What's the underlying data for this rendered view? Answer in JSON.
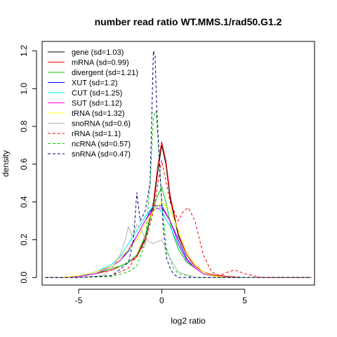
{
  "chart_data": {
    "type": "line",
    "title": "number read ratio WT.MMS.1/rad50.G1.2",
    "xlabel": "log2 ratio",
    "ylabel": "density",
    "xlim": [
      -7.2,
      9.2
    ],
    "ylim": [
      -0.04,
      1.25
    ],
    "x_ticks": [
      -5,
      0,
      5
    ],
    "x_tick_labels": [
      "-5",
      "0",
      "5"
    ],
    "y_ticks": [
      0.0,
      0.2,
      0.4,
      0.6,
      0.8,
      1.0,
      1.2
    ],
    "y_tick_labels": [
      "0.0",
      "0.2",
      "0.4",
      "0.6",
      "0.8",
      "1.0",
      "1.2"
    ],
    "grid": false,
    "legend_position": "top-left",
    "series": [
      {
        "name": "gene (sd=1.03)",
        "color": "#000000",
        "dash": "solid",
        "x": [
          -7,
          -6,
          -5,
          -4,
          -3.5,
          -3,
          -2.5,
          -2,
          -1.5,
          -1,
          -0.5,
          -0.25,
          0,
          0.25,
          0.5,
          1,
          1.5,
          2,
          2.5,
          3,
          4,
          5,
          6,
          7,
          9
        ],
        "y": [
          0,
          0,
          0.005,
          0.02,
          0.03,
          0.04,
          0.06,
          0.08,
          0.11,
          0.2,
          0.38,
          0.55,
          0.7,
          0.6,
          0.42,
          0.22,
          0.12,
          0.06,
          0.03,
          0.015,
          0.005,
          0,
          0,
          0,
          0
        ]
      },
      {
        "name": "mRNA (sd=0.99)",
        "color": "#ff0000",
        "dash": "solid",
        "x": [
          -7,
          -6,
          -5,
          -4,
          -3.5,
          -3,
          -2.5,
          -2,
          -1.5,
          -1,
          -0.5,
          -0.25,
          0,
          0.25,
          0.5,
          1,
          1.5,
          2,
          2.5,
          3,
          4,
          5,
          6,
          7,
          9
        ],
        "y": [
          0,
          0,
          0.005,
          0.02,
          0.03,
          0.04,
          0.06,
          0.08,
          0.11,
          0.21,
          0.4,
          0.58,
          0.72,
          0.62,
          0.44,
          0.23,
          0.12,
          0.06,
          0.03,
          0.015,
          0.005,
          0,
          0,
          0,
          0
        ]
      },
      {
        "name": "divergent (sd=1.21)",
        "color": "#00cd00",
        "dash": "solid",
        "x": [
          -7,
          -6,
          -5,
          -4,
          -3,
          -2.5,
          -2,
          -1.5,
          -1,
          -0.6,
          -0.3,
          0,
          0.3,
          0.6,
          1,
          1.5,
          2,
          2.5,
          3,
          4,
          5,
          6,
          7,
          9
        ],
        "y": [
          0,
          0,
          0.005,
          0.02,
          0.05,
          0.06,
          0.08,
          0.12,
          0.22,
          0.34,
          0.42,
          0.48,
          0.38,
          0.25,
          0.15,
          0.08,
          0.05,
          0.02,
          0.01,
          0,
          0,
          0,
          0,
          0
        ]
      },
      {
        "name": "XUT (sd=1.2)",
        "color": "#0000ff",
        "dash": "solid",
        "x": [
          -7,
          -6,
          -5,
          -4,
          -3,
          -2.5,
          -2,
          -1.5,
          -1,
          -0.5,
          0,
          0.5,
          1,
          1.5,
          2,
          2.5,
          3,
          4,
          5,
          6,
          7,
          9
        ],
        "y": [
          0,
          0,
          0.005,
          0.03,
          0.06,
          0.09,
          0.14,
          0.22,
          0.3,
          0.38,
          0.38,
          0.3,
          0.2,
          0.1,
          0.05,
          0.02,
          0.01,
          0,
          0,
          0,
          0,
          0
        ]
      },
      {
        "name": "CUT (sd=1.25)",
        "color": "#00e5ee",
        "dash": "solid",
        "x": [
          -7,
          -6,
          -5,
          -4,
          -3,
          -2.5,
          -2,
          -1.5,
          -1,
          -0.5,
          0,
          0.5,
          1,
          1.5,
          2,
          2.5,
          3,
          4,
          5,
          6,
          7,
          9
        ],
        "y": [
          0,
          0,
          0.005,
          0.03,
          0.07,
          0.11,
          0.18,
          0.25,
          0.32,
          0.38,
          0.35,
          0.27,
          0.17,
          0.09,
          0.05,
          0.02,
          0.01,
          0,
          0,
          0,
          0,
          0
        ]
      },
      {
        "name": "SUT (sd=1.12)",
        "color": "#ff00ff",
        "dash": "solid",
        "x": [
          -7,
          -6,
          -5,
          -4,
          -3,
          -2.5,
          -2,
          -1.5,
          -1,
          -0.5,
          0,
          0.5,
          1,
          1.5,
          2,
          2.5,
          3,
          4,
          5,
          6,
          7,
          9
        ],
        "y": [
          0,
          0,
          0.005,
          0.02,
          0.06,
          0.09,
          0.15,
          0.22,
          0.3,
          0.36,
          0.37,
          0.3,
          0.18,
          0.09,
          0.05,
          0.02,
          0.01,
          0,
          0,
          0,
          0,
          0
        ]
      },
      {
        "name": "tRNA (sd=1.32)",
        "color": "#ffff00",
        "dash": "solid",
        "x": [
          -7,
          -6,
          -5,
          -4,
          -3,
          -2.5,
          -2,
          -1.5,
          -1,
          -0.5,
          0,
          0.5,
          1,
          1.5,
          2,
          2.5,
          3,
          4,
          5,
          6,
          7,
          9
        ],
        "y": [
          0,
          0,
          0.01,
          0.03,
          0.06,
          0.1,
          0.15,
          0.2,
          0.28,
          0.35,
          0.4,
          0.36,
          0.25,
          0.13,
          0.07,
          0.03,
          0.01,
          0,
          0,
          0,
          0,
          0
        ]
      },
      {
        "name": "snoRNA (sd=0.6)",
        "color": "#b3b3b3",
        "dash": "solid",
        "x": [
          -7,
          -5,
          -3.5,
          -3,
          -2.5,
          -2.2,
          -2,
          -1.8,
          -1.5,
          -1.2,
          -1,
          -0.5,
          0,
          0.5,
          1,
          2,
          3,
          5,
          7,
          9
        ],
        "y": [
          0,
          0,
          0.01,
          0.05,
          0.12,
          0.2,
          0.27,
          0.22,
          0.28,
          0.25,
          0.2,
          0.18,
          0.2,
          0.1,
          0.03,
          0,
          0,
          0,
          0,
          0
        ]
      },
      {
        "name": "rRNA (sd=1.1)",
        "color": "#ff0000",
        "dash": "dashed",
        "x": [
          -7,
          -5,
          -3,
          -2,
          -1,
          -0.5,
          0,
          0.5,
          1,
          1.3,
          1.6,
          2,
          2.5,
          3,
          3.5,
          4,
          4.4,
          5,
          6,
          7,
          9
        ],
        "y": [
          0,
          0,
          0.01,
          0.05,
          0.18,
          0.35,
          0.62,
          0.4,
          0.3,
          0.35,
          0.37,
          0.3,
          0.12,
          0.03,
          0.01,
          0.03,
          0.04,
          0.02,
          0,
          0,
          0
        ]
      },
      {
        "name": "ncRNA (sd=0.57)",
        "color": "#00cd00",
        "dash": "dashed",
        "x": [
          -7,
          -5,
          -3,
          -2,
          -1.5,
          -1,
          -0.7,
          -0.5,
          -0.35,
          -0.2,
          0,
          0.3,
          0.7,
          1,
          2,
          3,
          5,
          7,
          9
        ],
        "y": [
          0,
          0,
          0.005,
          0.03,
          0.06,
          0.18,
          0.5,
          0.85,
          0.88,
          0.7,
          0.4,
          0.15,
          0.05,
          0.02,
          0,
          0,
          0,
          0,
          0
        ]
      },
      {
        "name": "snRNA (sd=0.47)",
        "color": "#00008b",
        "dash": "dashed",
        "x": [
          -7,
          -5,
          -3,
          -2,
          -1.7,
          -1.5,
          -1.3,
          -1,
          -0.7,
          -0.5,
          -0.4,
          -0.3,
          -0.1,
          0.1,
          0.3,
          0.5,
          0.7,
          1,
          2,
          3,
          5,
          7,
          9
        ],
        "y": [
          0,
          0,
          0.01,
          0.08,
          0.2,
          0.45,
          0.3,
          0.35,
          0.5,
          1.2,
          1.17,
          0.9,
          0.55,
          0.25,
          0.1,
          0.05,
          0.02,
          0,
          0,
          0,
          0,
          0,
          0
        ]
      }
    ]
  }
}
